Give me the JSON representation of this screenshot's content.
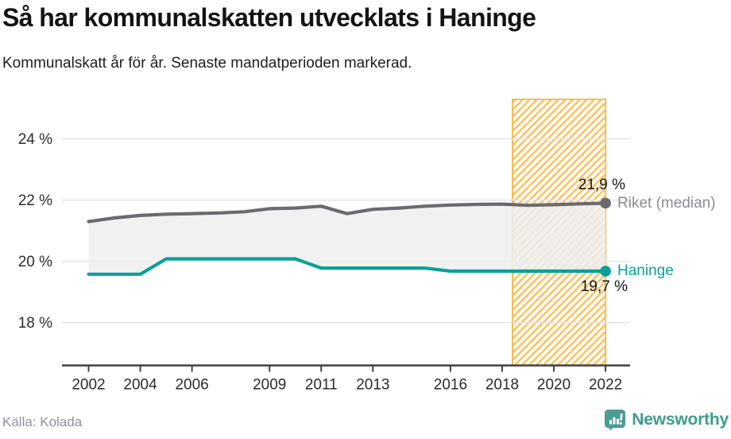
{
  "header": {
    "title": "Så har kommunalskatten utvecklats i Haninge",
    "subtitle": "Kommunalskatt år för år. Senaste mandatperioden markerad."
  },
  "chart_data": {
    "type": "line",
    "title": "Så har kommunalskatten utvecklats i Haninge",
    "subtitle": "Kommunalskatt år för år. Senaste mandatperioden markerad.",
    "unit": "%",
    "x": [
      2002,
      2003,
      2004,
      2005,
      2006,
      2007,
      2008,
      2009,
      2010,
      2011,
      2012,
      2013,
      2014,
      2015,
      2016,
      2017,
      2018,
      2019,
      2020,
      2021,
      2022
    ],
    "series": [
      {
        "name": "Riket (median)",
        "color": "#6c6a70",
        "end_label": "21,9 %",
        "end_value": 21.9,
        "values": [
          21.3,
          21.42,
          21.5,
          21.54,
          21.56,
          21.58,
          21.62,
          21.72,
          21.74,
          21.8,
          21.56,
          21.7,
          21.74,
          21.8,
          21.84,
          21.86,
          21.87,
          21.83,
          21.85,
          21.88,
          21.9
        ]
      },
      {
        "name": "Haninge",
        "color": "#0aa199",
        "end_label": "19,7 %",
        "end_value": 19.68,
        "values": [
          19.58,
          19.58,
          19.58,
          20.08,
          20.08,
          20.08,
          20.08,
          20.08,
          20.08,
          19.78,
          19.78,
          19.78,
          19.78,
          19.78,
          19.68,
          19.68,
          19.68,
          19.68,
          19.68,
          19.68,
          19.68
        ]
      }
    ],
    "xticks": [
      {
        "value": 2002,
        "label": "2002"
      },
      {
        "value": 2004,
        "label": "2004"
      },
      {
        "value": 2006,
        "label": "2006"
      },
      {
        "value": 2009,
        "label": "2009"
      },
      {
        "value": 2011,
        "label": "2011"
      },
      {
        "value": 2013,
        "label": "2013"
      },
      {
        "value": 2016,
        "label": "2016"
      },
      {
        "value": 2018,
        "label": "2018"
      },
      {
        "value": 2020,
        "label": "2020"
      },
      {
        "value": 2022,
        "label": "2022"
      }
    ],
    "yticks": [
      {
        "value": 24,
        "label": "24 %"
      },
      {
        "value": 22,
        "label": "22 %"
      },
      {
        "value": 20,
        "label": "20 %"
      },
      {
        "value": 18,
        "label": "18 %"
      }
    ],
    "xlim": [
      2000.97,
      2022.95
    ],
    "ylim": [
      16.6,
      25.29
    ],
    "grid": true,
    "legend_position": "end-of-line labels",
    "between_fill": {
      "color": "#efefef",
      "opacity": 0.85
    },
    "highlight_band": {
      "x_from": 2018.4,
      "x_to": 2022,
      "style": "diagonal-hatch",
      "hatch_color": "#fcc463",
      "border_color": "#f9bc52",
      "meaning": "Senaste mandatperioden"
    }
  },
  "footer": {
    "source": "Källa: Kolada",
    "brand": "Newsworthy"
  },
  "colors": {
    "accent_teal": "#0aa199",
    "line_gray": "#6c6a70",
    "band_orange": "#f9bc52",
    "grid_gray": "#e4e4e4",
    "axis_gray": "#404040",
    "brand_teal": "#3f9b90"
  }
}
